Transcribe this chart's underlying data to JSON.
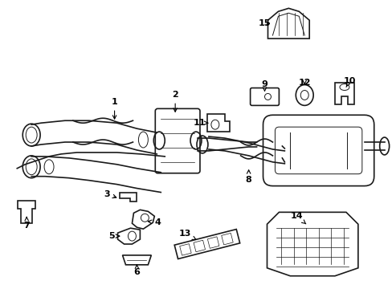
{
  "background_color": "#ffffff",
  "line_color": "#1a1a1a",
  "fig_width": 4.89,
  "fig_height": 3.6,
  "dpi": 100,
  "xlim": [
    0,
    489
  ],
  "ylim": [
    0,
    360
  ]
}
